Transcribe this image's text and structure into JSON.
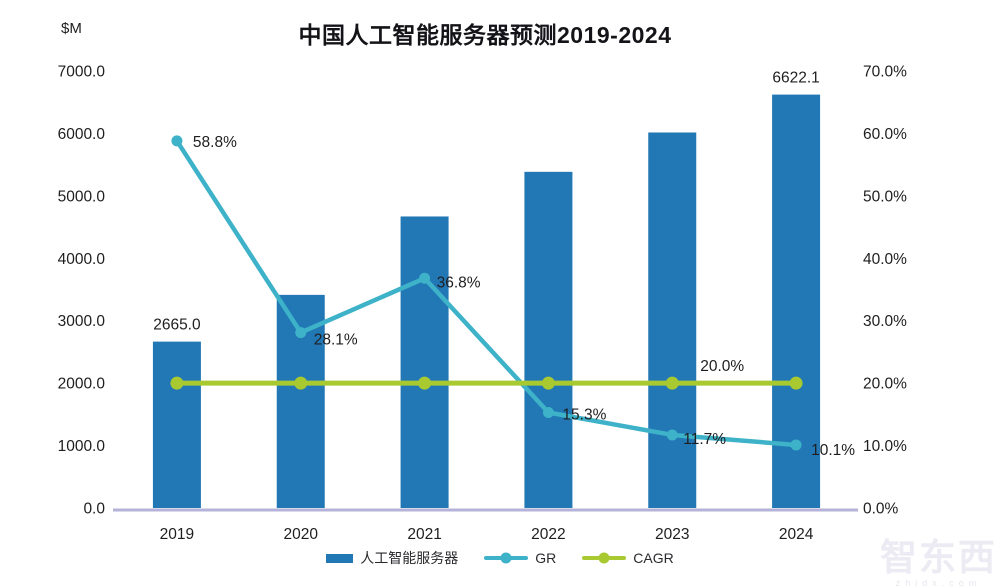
{
  "title": "中国人工智能服务器预测2019-2024",
  "left_axis": {
    "unit_label": "$M",
    "tick_labels": [
      "7000.0",
      "6000.0",
      "5000.0",
      "4000.0",
      "3000.0",
      "2000.0",
      "1000.0",
      "0.0"
    ]
  },
  "right_axis": {
    "tick_labels": [
      "70.0%",
      "60.0%",
      "50.0%",
      "40.0%",
      "30.0%",
      "20.0%",
      "10.0%",
      "0.0%"
    ]
  },
  "colors": {
    "bar": "#2278b5",
    "gr_line": "#3db2c8",
    "cagr_line": "#a9c930",
    "axis_line": "#b6b3da",
    "text": "#1e1e20"
  },
  "legend": {
    "items": [
      {
        "label": "人工智能服务器",
        "type": "bar"
      },
      {
        "label": "GR",
        "type": "line"
      },
      {
        "label": "CAGR",
        "type": "line"
      }
    ]
  },
  "watermark": {
    "logo_text": "智东西",
    "domain_text": "zhidx.com"
  },
  "chart_data": {
    "type": "bar",
    "subtype": "combo-bar-line-dual-axis",
    "title": "中国人工智能服务器预测2019-2024",
    "categories": [
      "2019",
      "2020",
      "2021",
      "2022",
      "2023",
      "2024"
    ],
    "series": [
      {
        "name": "人工智能服务器",
        "type": "bar",
        "axis": "left",
        "values": [
          2665.0,
          3414.0,
          4670.0,
          5385.0,
          6015.0,
          6622.1
        ],
        "data_labels": [
          "2665.0",
          null,
          null,
          null,
          null,
          "6622.1"
        ]
      },
      {
        "name": "GR",
        "type": "line",
        "axis": "right",
        "values": [
          58.8,
          28.1,
          36.8,
          15.3,
          11.7,
          10.1
        ],
        "data_labels": [
          "58.8%",
          "28.1%",
          "36.8%",
          "15.3%",
          "11.7%",
          "10.1%"
        ]
      },
      {
        "name": "CAGR",
        "type": "line",
        "axis": "right",
        "values": [
          20.0,
          20.0,
          20.0,
          20.0,
          20.0,
          20.0
        ],
        "data_labels": [
          null,
          null,
          null,
          null,
          "20.0%",
          null
        ]
      }
    ],
    "left_ylabel": "$M",
    "right_ylabel": "%",
    "left_ylim": [
      0,
      7000
    ],
    "right_ylim": [
      0,
      70
    ],
    "left_tick_step": 1000,
    "right_tick_step": 10,
    "grid": false,
    "legend_position": "bottom"
  }
}
